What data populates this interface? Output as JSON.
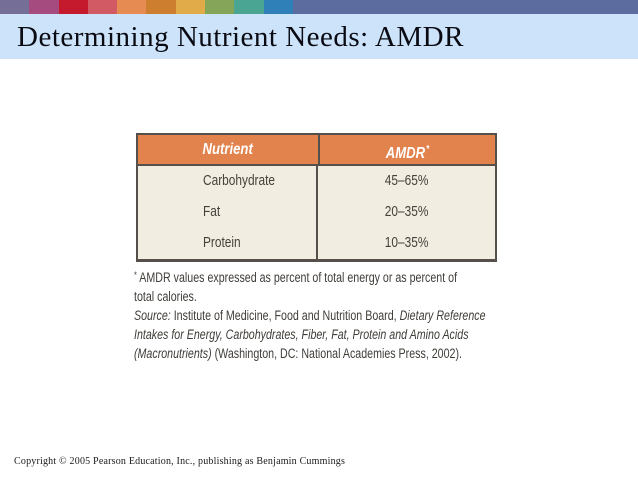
{
  "slide": {
    "title": "Determining Nutrient Needs: AMDR",
    "copyright": "Copyright © 2005 Pearson Education, Inc., publishing as Benjamin Cummings"
  },
  "colors": {
    "strip_fill": "#5C6C9F",
    "title_bar_bg": "#CCE3FA",
    "title_text": "#0A0A12",
    "table_header_bg": "#E2834E",
    "table_header_text": "#FFFFFF",
    "table_body_bg": "#F1EDE1",
    "table_border": "#55504A",
    "table_body_text": "#45413B",
    "footnote_text": "#403D38"
  },
  "top_strip": {
    "colors": [
      "#756F97",
      "#A64B7F",
      "#C51A2E",
      "#D25A65",
      "#E68C52",
      "#CD7F2F",
      "#E2AB4A",
      "#85A659",
      "#4AA693",
      "#2F80B9"
    ]
  },
  "chart_data": {
    "type": "table",
    "title": "AMDR table",
    "columns": [
      "Nutrient",
      "AMDR"
    ],
    "rows": [
      [
        "Carbohydrate",
        "45–65%"
      ],
      [
        "Fat",
        "20–35%"
      ],
      [
        "Protein",
        "10–35%"
      ]
    ]
  },
  "table": {
    "headers": [
      "Nutrient",
      "AMDR"
    ],
    "header_superscript": "*",
    "rows": [
      {
        "nutrient": "Carbohydrate",
        "amdr": "45–65%"
      },
      {
        "nutrient": "Fat",
        "amdr": "20–35%"
      },
      {
        "nutrient": "Protein",
        "amdr": "10–35%"
      }
    ]
  },
  "footnote": {
    "asterisk": "*",
    "line1": "AMDR values expressed as percent of total energy or as percent of",
    "line2": "total calories.",
    "source_label": "Source:",
    "source_mid": " Institute of Medicine, Food and Nutrition Board, ",
    "source_italic1": "Dietary Reference",
    "source_italic2": "Intakes for Energy, Carbohydrates, Fiber, Fat, Protein and Amino Acids",
    "source_italic3": "(Macronutrients)",
    "source_end": " (Washington, DC: National Academies Press, 2002)."
  }
}
